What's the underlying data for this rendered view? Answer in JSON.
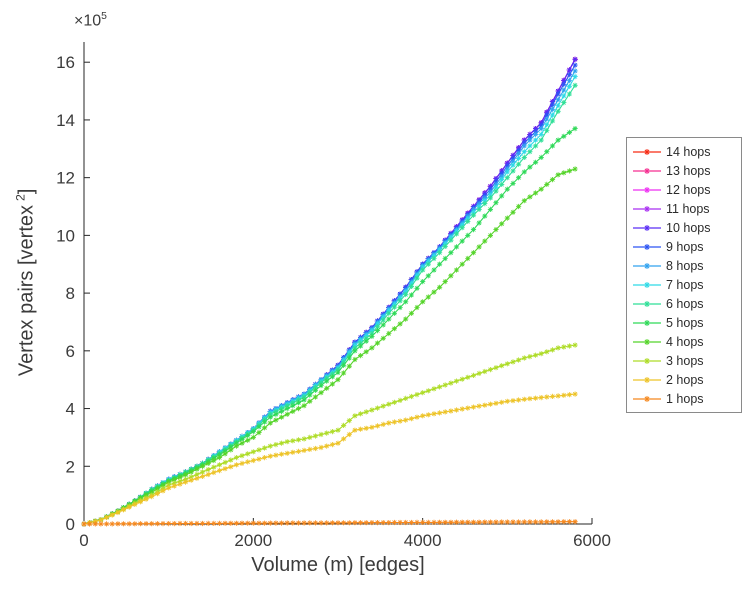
{
  "figure": {
    "multiplier_base": "×10",
    "multiplier_exp": "5",
    "xlabel": "Volume (m) [edges]",
    "ylabel_main": "Vertex pairs [vertex",
    "ylabel_sup": "2",
    "ylabel_close": "]"
  },
  "chart_data": {
    "type": "line",
    "title": "",
    "xlabel": "Volume (m) [edges]",
    "ylabel": "Vertex pairs [vertex^2]",
    "y_scale_label": "×10^5",
    "marker": "*",
    "grid": false,
    "legend_position": "right-outside",
    "axis_color": "#262626",
    "legend_border_color": "#8a8a8a",
    "xlim": [
      0,
      6000
    ],
    "ylim": [
      0,
      16.7
    ],
    "xticks": [
      0,
      2000,
      4000,
      6000
    ],
    "yticks": [
      0,
      2,
      4,
      6,
      8,
      10,
      12,
      14,
      16
    ],
    "y_unit_multiplier": 100000,
    "x": [
      0,
      200,
      400,
      600,
      800,
      1000,
      1200,
      1400,
      1600,
      1800,
      2000,
      2200,
      2400,
      2600,
      2800,
      3000,
      3200,
      3400,
      3600,
      3800,
      4000,
      4200,
      4400,
      4600,
      4800,
      5000,
      5200,
      5400,
      5600,
      5800
    ],
    "series": [
      {
        "name": "14 hops",
        "color": "#F62A13",
        "values": [
          0,
          0.15,
          0.45,
          0.8,
          1.2,
          1.55,
          1.8,
          2.1,
          2.5,
          2.9,
          3.3,
          3.9,
          4.2,
          4.5,
          5.0,
          5.5,
          6.3,
          6.8,
          7.5,
          8.2,
          9.0,
          9.6,
          10.3,
          11.0,
          11.7,
          12.5,
          13.3,
          13.9,
          15.0,
          16.1
        ]
      },
      {
        "name": "13 hops",
        "color": "#F52D90",
        "values": [
          0,
          0.15,
          0.45,
          0.8,
          1.2,
          1.55,
          1.8,
          2.1,
          2.5,
          2.9,
          3.3,
          3.9,
          4.2,
          4.5,
          5.0,
          5.5,
          6.3,
          6.8,
          7.5,
          8.2,
          9.0,
          9.6,
          10.3,
          11.0,
          11.7,
          12.5,
          13.3,
          13.9,
          15.0,
          16.1
        ]
      },
      {
        "name": "12 hops",
        "color": "#ED2FF2",
        "values": [
          0,
          0.15,
          0.45,
          0.8,
          1.2,
          1.55,
          1.8,
          2.1,
          2.5,
          2.9,
          3.3,
          3.9,
          4.2,
          4.5,
          5.0,
          5.5,
          6.3,
          6.8,
          7.5,
          8.2,
          9.0,
          9.6,
          10.3,
          11.0,
          11.7,
          12.5,
          13.3,
          13.9,
          15.0,
          16.1
        ]
      },
      {
        "name": "11 hops",
        "color": "#A92FF2",
        "values": [
          0,
          0.15,
          0.45,
          0.8,
          1.2,
          1.55,
          1.8,
          2.1,
          2.5,
          2.9,
          3.3,
          3.9,
          4.2,
          4.5,
          5.0,
          5.5,
          6.3,
          6.8,
          7.5,
          8.2,
          9.0,
          9.6,
          10.3,
          11.0,
          11.7,
          12.5,
          13.3,
          13.9,
          15.0,
          16.1
        ]
      },
      {
        "name": "10 hops",
        "color": "#5A2DF5",
        "values": [
          0,
          0.15,
          0.45,
          0.8,
          1.2,
          1.55,
          1.8,
          2.1,
          2.5,
          2.9,
          3.3,
          3.9,
          4.2,
          4.5,
          5.0,
          5.5,
          6.3,
          6.8,
          7.5,
          8.2,
          9.0,
          9.6,
          10.3,
          11.0,
          11.7,
          12.5,
          13.3,
          13.9,
          15.0,
          16.1
        ]
      },
      {
        "name": "9 hops",
        "color": "#2C55F3",
        "values": [
          0,
          0.15,
          0.45,
          0.8,
          1.2,
          1.55,
          1.8,
          2.1,
          2.5,
          2.9,
          3.3,
          3.9,
          4.2,
          4.5,
          5.0,
          5.5,
          6.3,
          6.8,
          7.5,
          8.2,
          9.0,
          9.6,
          10.25,
          10.95,
          11.6,
          12.4,
          13.2,
          13.8,
          14.9,
          15.9
        ]
      },
      {
        "name": "8 hops",
        "color": "#30A2EF",
        "values": [
          0,
          0.15,
          0.45,
          0.8,
          1.2,
          1.55,
          1.8,
          2.1,
          2.5,
          2.9,
          3.3,
          3.9,
          4.2,
          4.5,
          5.0,
          5.45,
          6.25,
          6.75,
          7.45,
          8.1,
          8.95,
          9.55,
          10.2,
          10.9,
          11.5,
          12.3,
          13.1,
          13.7,
          14.7,
          15.7
        ]
      },
      {
        "name": "7 hops",
        "color": "#2EDAE6",
        "values": [
          0,
          0.15,
          0.45,
          0.8,
          1.2,
          1.55,
          1.8,
          2.1,
          2.5,
          2.9,
          3.3,
          3.85,
          4.15,
          4.45,
          4.95,
          5.4,
          6.2,
          6.7,
          7.4,
          8.05,
          8.9,
          9.5,
          10.15,
          10.8,
          11.4,
          12.2,
          12.9,
          13.5,
          14.5,
          15.5
        ]
      },
      {
        "name": "6 hops",
        "color": "#2EDF97",
        "values": [
          0,
          0.15,
          0.45,
          0.8,
          1.2,
          1.5,
          1.8,
          2.1,
          2.45,
          2.85,
          3.25,
          3.8,
          4.1,
          4.4,
          4.9,
          5.35,
          6.1,
          6.6,
          7.3,
          7.95,
          8.8,
          9.4,
          10.05,
          10.7,
          11.3,
          12.0,
          12.7,
          13.3,
          14.3,
          15.2
        ]
      },
      {
        "name": "5 hops",
        "color": "#2ED957",
        "values": [
          0,
          0.15,
          0.45,
          0.8,
          1.15,
          1.5,
          1.75,
          2.05,
          2.4,
          2.8,
          3.2,
          3.7,
          4.0,
          4.3,
          4.8,
          5.25,
          6.0,
          6.5,
          7.1,
          7.7,
          8.4,
          9.0,
          9.6,
          10.2,
          10.9,
          11.6,
          12.2,
          12.7,
          13.3,
          13.7
        ]
      },
      {
        "name": "4 hops",
        "color": "#55D42A",
        "values": [
          0,
          0.15,
          0.45,
          0.78,
          1.1,
          1.45,
          1.7,
          2.0,
          2.3,
          2.7,
          3.0,
          3.5,
          3.8,
          4.1,
          4.55,
          5.0,
          5.7,
          6.1,
          6.6,
          7.1,
          7.7,
          8.2,
          8.8,
          9.4,
          10.0,
          10.6,
          11.2,
          11.6,
          12.1,
          12.3
        ]
      },
      {
        "name": "3 hops",
        "color": "#AEDC28",
        "values": [
          0,
          0.15,
          0.42,
          0.72,
          1.0,
          1.35,
          1.55,
          1.8,
          2.05,
          2.3,
          2.5,
          2.7,
          2.85,
          2.95,
          3.1,
          3.25,
          3.75,
          3.95,
          4.15,
          4.35,
          4.55,
          4.75,
          4.95,
          5.15,
          5.35,
          5.55,
          5.75,
          5.9,
          6.1,
          6.2
        ]
      },
      {
        "name": "2 hops",
        "color": "#EDC327",
        "values": [
          0,
          0.14,
          0.4,
          0.68,
          0.95,
          1.25,
          1.45,
          1.65,
          1.85,
          2.05,
          2.2,
          2.35,
          2.45,
          2.55,
          2.65,
          2.8,
          3.25,
          3.35,
          3.5,
          3.6,
          3.75,
          3.85,
          3.95,
          4.05,
          4.15,
          4.25,
          4.32,
          4.38,
          4.44,
          4.5
        ]
      },
      {
        "name": "1 hops",
        "color": "#F5881E",
        "values": [
          0,
          0.003,
          0.006,
          0.008,
          0.011,
          0.014,
          0.017,
          0.019,
          0.022,
          0.025,
          0.028,
          0.03,
          0.033,
          0.036,
          0.039,
          0.041,
          0.044,
          0.047,
          0.05,
          0.052,
          0.055,
          0.058,
          0.061,
          0.063,
          0.066,
          0.069,
          0.072,
          0.074,
          0.077,
          0.08
        ]
      }
    ]
  }
}
